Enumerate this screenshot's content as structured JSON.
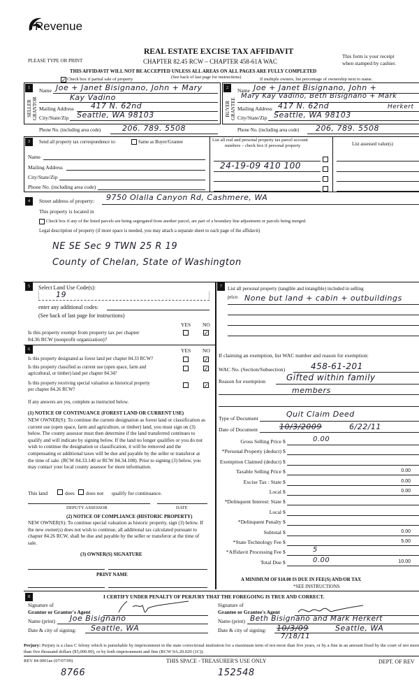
{
  "header": {
    "logo_text": "Revenue",
    "please_type": "PLEASE TYPE OR PRINT",
    "title": "REAL ESTATE EXCISE TAX AFFIDAVIT",
    "chapter": "CHAPTER 82.45 RCW – CHAPTER 458-61A WAC",
    "receipt_1": "This form is your receipt",
    "receipt_2": "when stamped by cashier.",
    "warning": "THIS AFFIDAVIT WILL NOT BE ACCEPTED UNLESS ALL AREAS ON ALL PAGES ARE FULLY COMPLETED",
    "see_back": "(See back of last page for instructions)",
    "partial_sale": "Check box if partial sale of property",
    "partial_sale_checked": true,
    "multiple_owners": "If multiple owners, list percentage of ownership next to name."
  },
  "seller": {
    "num": "1",
    "side_label_1": "SELLER",
    "side_label_2": "GRANTOR",
    "name_label": "Name",
    "name_1": "Joe + Janet Bisignano, John + Mary",
    "name_2": "Kay Vadino",
    "mail_label": "Mailing Address",
    "mail": "417 N. 62nd",
    "city_label": "City/State/Zip",
    "city": "Seattle, WA 98103",
    "phone_label": "Phone No. (including area code)",
    "phone": "206. 789. 5508"
  },
  "buyer": {
    "num": "2",
    "side_label_1": "BUYER",
    "side_label_2": "GRANTEE",
    "name_label": "Name",
    "name_1": "Joe + Janet Bisignano, John +",
    "name_2": "Mary Kay Vadino, Beth Bisignano + Mark",
    "name_3": "Herkert",
    "mail_label": "Mailing Address",
    "mail": "417 N. 62nd",
    "city_label": "City/State/Zip",
    "city": "Seattle, WA 98103",
    "phone_label": "Phone No. (including area code)",
    "phone": "206, 789. 5508"
  },
  "correspondence": {
    "num": "3",
    "label": "Send all property tax correspondence to:",
    "same_as": "Same as Buyer/Grantee",
    "name_label": "Name",
    "mail_label": "Mailing Address",
    "city_label": "City/State/Zip",
    "phone_label": "Phone No. (including area code)"
  },
  "parcels": {
    "header_1": "List all real and personal property tax parcel account",
    "header_2": "numbers – check box if personal property",
    "assessed_header": "List assessed value(s)",
    "parcel_2": "24-19-09 410 100"
  },
  "property": {
    "num": "4",
    "street_label": "Street address of property:",
    "street": "9750 Olalla Canyon Rd, Cashmere, WA",
    "located_in": "This property is located in",
    "segregated": "Check box if any of the listed parcels are being segregated from another parcel, are part of a boundary line adjustment or parcels being merged.",
    "legal_label": "Legal description of property (if more space is needed, you may attach a separate sheet to each page of the affidavit)",
    "legal_1": "NE SE Sec 9 TWN 25 R 19",
    "legal_2": "County of Chelan, State of Washington"
  },
  "land_use": {
    "num": "5",
    "label": "Select Land Use Code(s):",
    "code": "19",
    "additional": "enter any additional codes:",
    "see_back": "(See back of last page for instructions)",
    "yes": "YES",
    "no": "NO",
    "q_exempt_1": "Is this property exempt from property tax per chapter",
    "q_exempt_2": "84.36 RCW (nonprofit organization)?"
  },
  "section6": {
    "num": "6",
    "yes": "YES",
    "no": "NO",
    "q1": "Is this property designated as forest land per chapter 84.33 RCW?",
    "q2a": "Is this property classified as current use (open space, farm and",
    "q2b": "agricultural, or timber) land per chapter 84.34?",
    "q3a": "Is this property receiving special valuation as historical property",
    "q3b": "per chapter 84.26 RCW?",
    "if_yes": "If any answers are yes, complete as instructed below.",
    "notice1_title": "(1) NOTICE OF CONTINUANCE (FOREST LAND OR CURRENT USE)",
    "notice1_text": "NEW OWNER(S): To continue the current designation as forest land or classification as current use (open space, farm and agriculture, or timber) land, you must sign on (3) below. The county assessor must then determine if the land transferred continues to qualify and will indicate by signing below. If the land no longer qualifies or you do not wish to continue the designation or classification, it will be removed and the compensating or additional taxes will be due and payable by the seller or transferor at the time of sale. (RCW 84.33.140 or RCW 84.34.108). Prior to signing (3) below, you may contact your local county assessor for more information.",
    "land_label": "This land",
    "does": "does",
    "does_not": "does not",
    "qualify": "qualify for continuance.",
    "deputy": "DEPUTY ASSESSOR",
    "date": "DATE",
    "notice2_title": "(2) NOTICE OF COMPLIANCE (HISTORIC PROPERTY)",
    "notice2_text": "NEW OWNER(S): To continue special valuation as historic property, sign (3) below. If the new owner(s) does not wish to continue, all additional tax calculated pursuant to chapter 84.26 RCW, shall be due and payable by the seller or transferor at the time of sale.",
    "owner_sig": "(3) OWNER(S) SIGNATURE",
    "print_name": "PRINT NAME"
  },
  "section7": {
    "num": "7",
    "label_1": "List all  personal property (tangible and intangible) included in selling",
    "label_2": "price.",
    "personal_property": "None but land + cabin + outbuildings",
    "exemption_label": "If claiming an exemption, list WAC number and reason for exemption:",
    "wac_label": "WAC No. (Section/Subsection)",
    "wac": "458-61-201",
    "reason_label": "Reason for exemption",
    "reason_1": "Gifted within family",
    "reason_2": "members",
    "doc_type_label": "Type of Document",
    "doc_type": "Quit Claim Deed",
    "doc_date_label": "Date of Document",
    "doc_date_struck": "10/3/2009",
    "doc_date": "6/22/11"
  },
  "fees": [
    {
      "label": "Gross Selling Price",
      "handwritten": "0.00",
      "printed": ""
    },
    {
      "label": "*Personal Property (deduct)",
      "handwritten": "",
      "printed": ""
    },
    {
      "label": "Exemption Claimed (deduct)",
      "handwritten": "",
      "printed": ""
    },
    {
      "label": "Taxable Selling Price",
      "handwritten": "",
      "printed": "0.00"
    },
    {
      "label": "Excise Tax : State",
      "handwritten": "",
      "printed": "0.00"
    },
    {
      "label": "Local",
      "handwritten": "",
      "printed": "0.00"
    },
    {
      "label": "*Delinquent Interest: State",
      "handwritten": "",
      "printed": ""
    },
    {
      "label": "Local",
      "handwritten": "",
      "printed": ""
    },
    {
      "label": "*Delinquent Penalty",
      "handwritten": "",
      "printed": ""
    },
    {
      "label": "Subtotal",
      "handwritten": "",
      "printed": "0.00"
    },
    {
      "label": "*State Technology Fee",
      "handwritten": "",
      "printed": "5.00"
    },
    {
      "label": "*Affidavit Processing Fee",
      "handwritten": "5",
      "printed": ""
    },
    {
      "label": "Total Due",
      "handwritten": "0.00",
      "printed": "10.00"
    }
  ],
  "fees_currency": "$",
  "minimum": "A MINIMUM OF $10.00 IS DUE IN FEE(S) AND/OR TAX",
  "see_instructions": "*SEE INSTRUCTIONS",
  "certify": {
    "num": "8",
    "statement": "I CERTIFY UNDER PENALTY OF PERJURY THAT THE FOREGOING IS TRUE AND CORRECT.",
    "sig_of": "Signature of",
    "grantor_agent": "Grantor or Grantor's Agent",
    "grantee_agent": "Grantee or Grantee's Agent",
    "name_print": "Name (print)",
    "grantor_name": "Joe Bisignano",
    "grantee_name": "Beth Bisignano and Mark Herkert",
    "date_city": "Date & city of signing:",
    "grantor_date_city": "Seattle, WA",
    "grantee_date_struck": "10/3/09",
    "grantee_date": "7/18/11",
    "grantee_city": "Seattle, WA"
  },
  "footer": {
    "perjury_bold": "Perjury:",
    "perjury_text": " Perjury is a class C felony which is punishable by imprisonment in the state correctional institution for a maximum term of not more than five years, or by a fine in an amount fixed by the court of not more than five thousand dollars ($5,000.00), or by both imprisonment and fine (RCW 9A.20.020 (1C)).",
    "rev": "REV 84 0001ae (07/07/09)",
    "treasurer": "THIS SPACE - TREASURER'S USE ONLY",
    "dept": "DEPT. OF REV",
    "hw_left": "8766",
    "hw_center": "152548"
  }
}
